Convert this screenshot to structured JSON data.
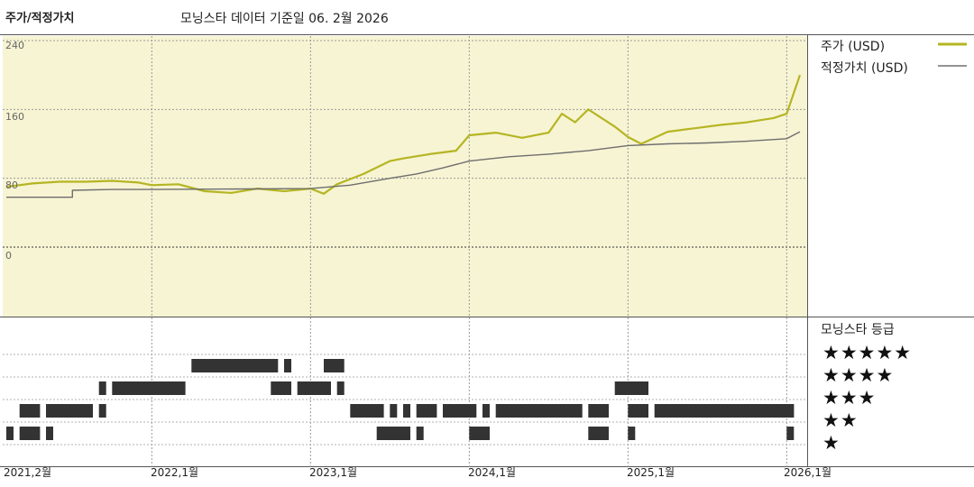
{
  "header": {
    "left_title": "주가/적정가치",
    "subtitle": "모닝스타 데이터 기준일 06. 2월 2026"
  },
  "legend": {
    "price_label": "주가 (USD)",
    "fair_label": "적정가치 (USD)"
  },
  "rating_panel": {
    "title": "모닝스타 등급",
    "star_rows": [
      "★★★★★",
      "★★★★",
      "★★★",
      "★★",
      "★"
    ]
  },
  "colors": {
    "price": "#b5b523",
    "fair": "#6e6e6e",
    "plot_bg": "#f7f4d3",
    "bars": "#333333"
  },
  "chart_data": {
    "type": "line",
    "title": "",
    "x_range": [
      "2021-02",
      "2026-02"
    ],
    "ylim": [
      0,
      240
    ],
    "y_ticks": [
      "240",
      "160",
      "80",
      "0"
    ],
    "x_ticks": [
      "2021,2월",
      "2022,1월",
      "2023,1월",
      "2024,1월",
      "2025,1월",
      "2026,1월"
    ],
    "series": [
      {
        "name": "주가 (USD)",
        "points": [
          [
            "2021-02",
            70
          ],
          [
            "2021-04",
            74
          ],
          [
            "2021-06",
            76
          ],
          [
            "2021-08",
            76
          ],
          [
            "2021-10",
            77
          ],
          [
            "2021-12",
            75
          ],
          [
            "2022-01",
            72
          ],
          [
            "2022-03",
            73
          ],
          [
            "2022-05",
            65
          ],
          [
            "2022-07",
            63
          ],
          [
            "2022-09",
            68
          ],
          [
            "2022-11",
            65
          ],
          [
            "2023-01",
            68
          ],
          [
            "2023-02",
            62
          ],
          [
            "2023-03",
            73
          ],
          [
            "2023-05",
            85
          ],
          [
            "2023-07",
            100
          ],
          [
            "2023-08",
            103
          ],
          [
            "2023-10",
            108
          ],
          [
            "2023-12",
            112
          ],
          [
            "2024-01",
            130
          ],
          [
            "2024-03",
            133
          ],
          [
            "2024-05",
            127
          ],
          [
            "2024-07",
            133
          ],
          [
            "2024-08",
            155
          ],
          [
            "2024-09",
            145
          ],
          [
            "2024-10",
            160
          ],
          [
            "2024-12",
            140
          ],
          [
            "2025-01",
            128
          ],
          [
            "2025-02",
            120
          ],
          [
            "2025-04",
            134
          ],
          [
            "2025-06",
            138
          ],
          [
            "2025-08",
            142
          ],
          [
            "2025-10",
            145
          ],
          [
            "2025-12",
            150
          ],
          [
            "2026-01",
            155
          ],
          [
            "2026-02",
            200
          ]
        ]
      },
      {
        "name": "적정가치 (USD)",
        "points": [
          [
            "2021-02",
            58
          ],
          [
            "2021-07",
            58
          ],
          [
            "2021-07",
            66
          ],
          [
            "2021-10",
            67
          ],
          [
            "2022-01",
            67
          ],
          [
            "2023-01",
            68
          ],
          [
            "2023-04",
            72
          ],
          [
            "2023-07",
            80
          ],
          [
            "2023-09",
            85
          ],
          [
            "2023-11",
            92
          ],
          [
            "2024-01",
            100
          ],
          [
            "2024-04",
            105
          ],
          [
            "2024-07",
            108
          ],
          [
            "2024-10",
            112
          ],
          [
            "2025-01",
            118
          ],
          [
            "2025-04",
            120
          ],
          [
            "2025-07",
            121
          ],
          [
            "2025-10",
            123
          ],
          [
            "2026-01",
            126
          ],
          [
            "2026-02",
            134
          ]
        ]
      }
    ],
    "rating_history": [
      {
        "stars": 5,
        "segments": [
          [
            "2022-04",
            "2022-10"
          ],
          [
            "2022-11",
            "2022-11"
          ],
          [
            "2023-02",
            "2023-03"
          ]
        ]
      },
      {
        "stars": 4,
        "segments": [
          [
            "2021-09",
            "2021-09"
          ],
          [
            "2021-10",
            "2022-03"
          ],
          [
            "2022-10",
            "2022-11"
          ],
          [
            "2022-12",
            "2023-02"
          ],
          [
            "2023-03",
            "2023-03"
          ],
          [
            "2024-12",
            "2025-02"
          ]
        ]
      },
      {
        "stars": 3,
        "segments": [
          [
            "2021-03",
            "2021-04"
          ],
          [
            "2021-05",
            "2021-08"
          ],
          [
            "2021-09",
            "2021-09"
          ],
          [
            "2023-04",
            "2023-06"
          ],
          [
            "2023-07",
            "2023-07"
          ],
          [
            "2023-08",
            "2023-08"
          ],
          [
            "2023-09",
            "2023-10"
          ],
          [
            "2023-11",
            "2024-01"
          ],
          [
            "2024-02",
            "2024-02"
          ],
          [
            "2024-03",
            "2024-09"
          ],
          [
            "2024-10",
            "2024-11"
          ],
          [
            "2025-01",
            "2025-02"
          ],
          [
            "2025-03",
            "2026-01"
          ]
        ]
      },
      {
        "stars": 2,
        "segments": [
          [
            "2021-02",
            "2021-02"
          ],
          [
            "2021-03",
            "2021-04"
          ],
          [
            "2021-05",
            "2021-05"
          ],
          [
            "2023-06",
            "2023-08"
          ],
          [
            "2023-09",
            "2023-09"
          ],
          [
            "2024-01",
            "2024-02"
          ],
          [
            "2024-10",
            "2024-11"
          ],
          [
            "2025-01",
            "2025-01"
          ],
          [
            "2026-01",
            "2026-01"
          ]
        ]
      }
    ]
  }
}
